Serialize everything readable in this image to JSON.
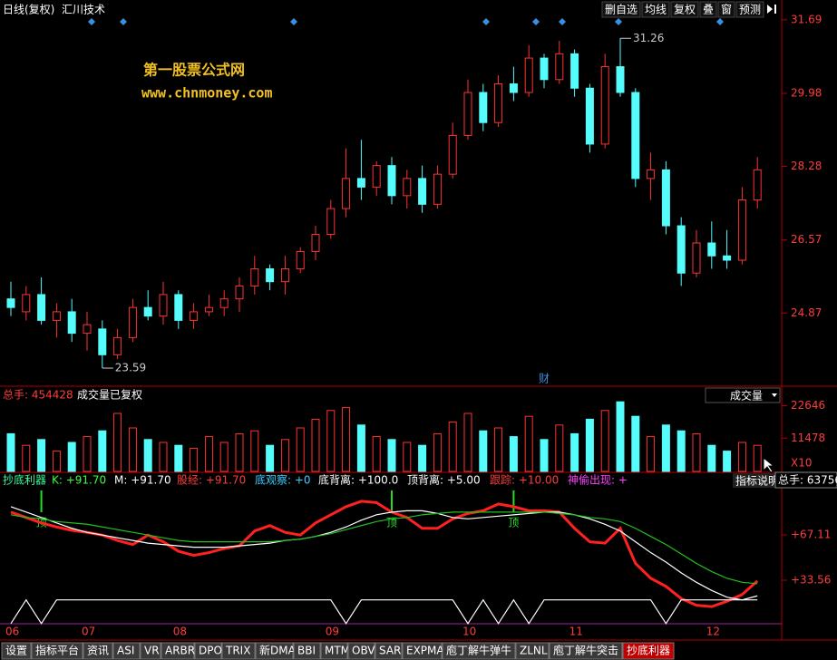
{
  "toolbar": {
    "period": "日线(复权)",
    "stock": "汇川技术",
    "buttons": [
      "删自选",
      "均线",
      "复权",
      "叠",
      "窗",
      "预测"
    ]
  },
  "watermark": {
    "title": "第一股票公式网",
    "url": "www.chnmoney.com"
  },
  "cursor_tip": "总手: 63756",
  "chart_data": [
    {
      "type": "candlestick",
      "candles": [
        [
          25.2,
          25.6,
          24.8,
          25.0
        ],
        [
          24.9,
          25.5,
          24.7,
          25.3
        ],
        [
          25.3,
          25.7,
          24.6,
          24.7
        ],
        [
          24.7,
          25.1,
          24.3,
          24.9
        ],
        [
          24.9,
          25.2,
          24.2,
          24.4
        ],
        [
          24.4,
          24.9,
          24.0,
          24.6
        ],
        [
          24.5,
          24.7,
          23.59,
          23.9
        ],
        [
          23.9,
          24.5,
          23.8,
          24.3
        ],
        [
          24.3,
          25.2,
          24.2,
          25.0
        ],
        [
          25.0,
          25.4,
          24.7,
          24.8
        ],
        [
          24.8,
          25.6,
          24.6,
          25.3
        ],
        [
          25.3,
          25.4,
          24.5,
          24.7
        ],
        [
          24.7,
          25.1,
          24.5,
          24.9
        ],
        [
          24.9,
          25.3,
          24.8,
          25.0
        ],
        [
          25.0,
          25.4,
          24.8,
          25.2
        ],
        [
          25.2,
          25.7,
          24.9,
          25.5
        ],
        [
          25.5,
          26.2,
          25.3,
          25.9
        ],
        [
          25.9,
          26.0,
          25.4,
          25.6
        ],
        [
          25.6,
          26.2,
          25.3,
          25.9
        ],
        [
          25.9,
          26.4,
          25.8,
          26.3
        ],
        [
          26.3,
          26.9,
          26.1,
          26.7
        ],
        [
          26.7,
          27.5,
          26.6,
          27.3
        ],
        [
          27.3,
          28.7,
          27.1,
          28.0
        ],
        [
          28.0,
          28.9,
          27.5,
          27.8
        ],
        [
          27.8,
          28.4,
          27.6,
          28.3
        ],
        [
          28.3,
          28.5,
          27.4,
          27.6
        ],
        [
          27.6,
          28.2,
          27.3,
          28.0
        ],
        [
          28.0,
          28.3,
          27.2,
          27.4
        ],
        [
          27.4,
          28.3,
          27.3,
          28.1
        ],
        [
          28.1,
          29.3,
          28.0,
          29.0
        ],
        [
          29.0,
          30.3,
          28.9,
          30.0
        ],
        [
          30.0,
          30.2,
          29.1,
          29.3
        ],
        [
          29.3,
          30.4,
          29.2,
          30.2
        ],
        [
          30.2,
          30.6,
          29.8,
          30.0
        ],
        [
          30.0,
          31.1,
          29.9,
          30.8
        ],
        [
          30.8,
          30.9,
          30.1,
          30.3
        ],
        [
          30.3,
          31.2,
          30.2,
          30.9
        ],
        [
          30.9,
          31.0,
          29.9,
          30.1
        ],
        [
          30.1,
          30.2,
          28.6,
          28.8
        ],
        [
          28.8,
          30.9,
          28.7,
          30.6
        ],
        [
          30.6,
          31.26,
          29.9,
          30.0
        ],
        [
          30.0,
          30.1,
          27.8,
          28.0
        ],
        [
          28.0,
          28.6,
          27.5,
          28.2
        ],
        [
          28.2,
          28.4,
          26.7,
          26.9
        ],
        [
          26.9,
          27.1,
          25.5,
          25.8
        ],
        [
          25.8,
          26.8,
          25.7,
          26.5
        ],
        [
          26.5,
          27.0,
          25.9,
          26.2
        ],
        [
          26.2,
          26.8,
          25.9,
          26.1
        ],
        [
          26.1,
          27.8,
          26.0,
          27.5
        ],
        [
          27.5,
          28.5,
          27.3,
          28.2
        ]
      ],
      "ylim": [
        23.19,
        31.94
      ],
      "yticks": [
        31.69,
        29.98,
        28.28,
        26.57,
        24.87
      ],
      "up_color": "#ff3232",
      "down_color": "#54fcfc",
      "annotations": [
        {
          "index": 6,
          "value": 23.59
        },
        {
          "index": 40,
          "value": 31.26
        }
      ],
      "events": [
        {
          "index": 35,
          "label": "财"
        }
      ]
    },
    {
      "type": "bar",
      "header": "总手: 454428",
      "subtitle": "成交量已复权",
      "selector": "成交量",
      "values": [
        13000,
        9000,
        11000,
        7000,
        10000,
        12000,
        14000,
        20000,
        15000,
        11000,
        10000,
        9000,
        8000,
        12000,
        10000,
        13000,
        14000,
        9000,
        11000,
        15000,
        18000,
        21000,
        22000,
        16000,
        12000,
        11000,
        10000,
        9000,
        13000,
        17000,
        20000,
        14000,
        15000,
        12000,
        19000,
        11000,
        16000,
        13000,
        18000,
        21000,
        24000,
        19000,
        12000,
        16000,
        14000,
        13000,
        9000,
        7000,
        10000,
        9000
      ],
      "ylim": [
        0,
        25000
      ],
      "yticks": [
        22646,
        11478
      ],
      "unit": "X10"
    },
    {
      "type": "line",
      "title": "抄底利器",
      "readouts": [
        {
          "text": "K: +91.70",
          "color": "#3cff3c"
        },
        {
          "text": "M: +91.70",
          "color": "#ffffff"
        },
        {
          "text": "股经: +91.70",
          "color": "#ff3c3c"
        },
        {
          "text": "底观察: +0",
          "color": "#3cd0ff"
        },
        {
          "text": "底背离: +100.0",
          "color": "#ffffff"
        },
        {
          "text": "顶背离: +5.00",
          "color": "#ffffff"
        },
        {
          "text": "跟踪: +10.00",
          "color": "#ff3c3c"
        },
        {
          "text": "神偷出现: +",
          "color": "#ff40ff"
        }
      ],
      "help": "指标说明",
      "categories": [
        "06",
        null,
        null,
        null,
        null,
        "07",
        null,
        null,
        null,
        null,
        null,
        "08",
        null,
        null,
        null,
        null,
        null,
        null,
        null,
        null,
        null,
        "09",
        null,
        null,
        null,
        null,
        null,
        null,
        null,
        null,
        "10",
        null,
        null,
        null,
        null,
        null,
        null,
        "11",
        null,
        null,
        null,
        null,
        null,
        null,
        null,
        null,
        "12",
        null,
        null,
        null
      ],
      "series": [
        {
          "name": "K",
          "color": "#ff2020",
          "values": [
            84,
            80,
            76,
            73,
            70.5,
            69,
            67,
            63,
            60,
            67,
            62,
            55,
            52,
            54,
            57,
            59,
            70,
            74,
            69,
            67,
            76,
            82,
            88,
            92,
            91,
            84,
            80,
            72,
            72,
            79,
            83,
            85,
            90,
            88,
            85,
            85,
            84,
            72,
            62,
            61,
            72,
            46,
            35,
            29,
            20,
            15,
            14,
            18,
            23,
            33
          ]
        },
        {
          "name": "M",
          "color": "#ffffff",
          "values": [
            88,
            84,
            80,
            76,
            72,
            69,
            67,
            65,
            63,
            61,
            60,
            59,
            58,
            58,
            58,
            59,
            60,
            61,
            63,
            64,
            66,
            69,
            73,
            78,
            82,
            84,
            85,
            85,
            83,
            80,
            79,
            80,
            81,
            82,
            83,
            84,
            84,
            82,
            79,
            75,
            70,
            62,
            54,
            47,
            39,
            32,
            26,
            21,
            19,
            22
          ]
        },
        {
          "color": "#20c020",
          "values": [
            82,
            80,
            79,
            77,
            76,
            75,
            73,
            71,
            69,
            67,
            65,
            63,
            62,
            62,
            62,
            62,
            62,
            62,
            63,
            64,
            66,
            68,
            71,
            74,
            77,
            79,
            80,
            82,
            83,
            84,
            84,
            84,
            84,
            84,
            84,
            84,
            83,
            82,
            80,
            79,
            77,
            72,
            66,
            60,
            53,
            46,
            40,
            35,
            32,
            31
          ]
        },
        {
          "color": "#ffffff",
          "values": [
            1.5,
            19,
            1.5,
            19,
            19,
            19,
            19,
            19,
            19,
            19,
            19,
            19,
            19,
            19,
            19,
            19,
            19,
            19,
            19,
            19,
            19,
            19,
            1.5,
            19,
            19,
            19,
            19,
            19,
            19,
            19,
            1.5,
            19,
            1.5,
            19,
            1.5,
            19,
            19,
            19,
            19,
            19,
            19,
            19,
            19,
            1.5,
            19,
            19,
            19,
            19,
            19,
            19
          ]
        }
      ],
      "ylim": [
        -6.7,
        102.7
      ],
      "yticks": [
        {
          "value": 67.11,
          "label": "+67.11"
        },
        {
          "value": 33.56,
          "label": "+33.56"
        }
      ],
      "markers": [
        {
          "index": 2,
          "label": "顶"
        },
        {
          "index": 25,
          "label": "顶"
        },
        {
          "index": 33,
          "label": "顶"
        }
      ]
    }
  ],
  "tabs": [
    {
      "label": "设置"
    },
    {
      "label": "指标平台"
    },
    {
      "label": "资讯"
    },
    {
      "label": "ASI"
    },
    {
      "label": "VR"
    },
    {
      "label": "ARBR"
    },
    {
      "label": "DPO"
    },
    {
      "label": "TRIX"
    },
    {
      "label": "新DMA"
    },
    {
      "label": "BBI"
    },
    {
      "label": "MTM"
    },
    {
      "label": "OBV"
    },
    {
      "label": "SAR"
    },
    {
      "label": "EXPMA"
    },
    {
      "label": "庖丁解牛弹牛"
    },
    {
      "label": "ZLNL"
    },
    {
      "label": "庖丁解牛突击"
    },
    {
      "label": "抄底利器",
      "active": true
    }
  ]
}
